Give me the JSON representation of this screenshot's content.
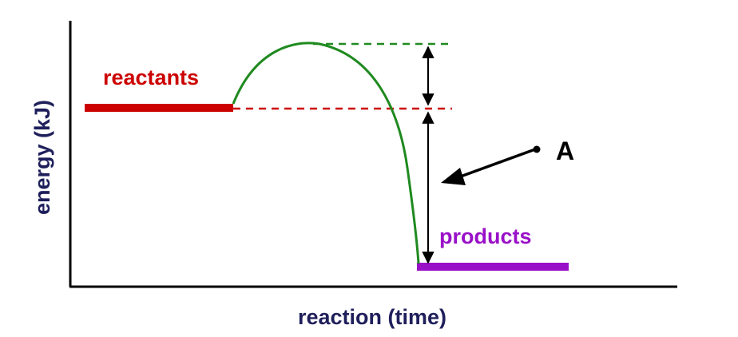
{
  "axes": {
    "x_label": "reaction (time)",
    "y_label": "energy (kJ)",
    "label_color": "#1f1f5c"
  },
  "labels": {
    "reactants": "reactants",
    "products": "products",
    "marker": "A"
  },
  "colors": {
    "reactants": "#cc0000",
    "products": "#9a10c8",
    "curve": "#1f8a1f",
    "arrows": "#000000",
    "axis": "#000000"
  }
}
